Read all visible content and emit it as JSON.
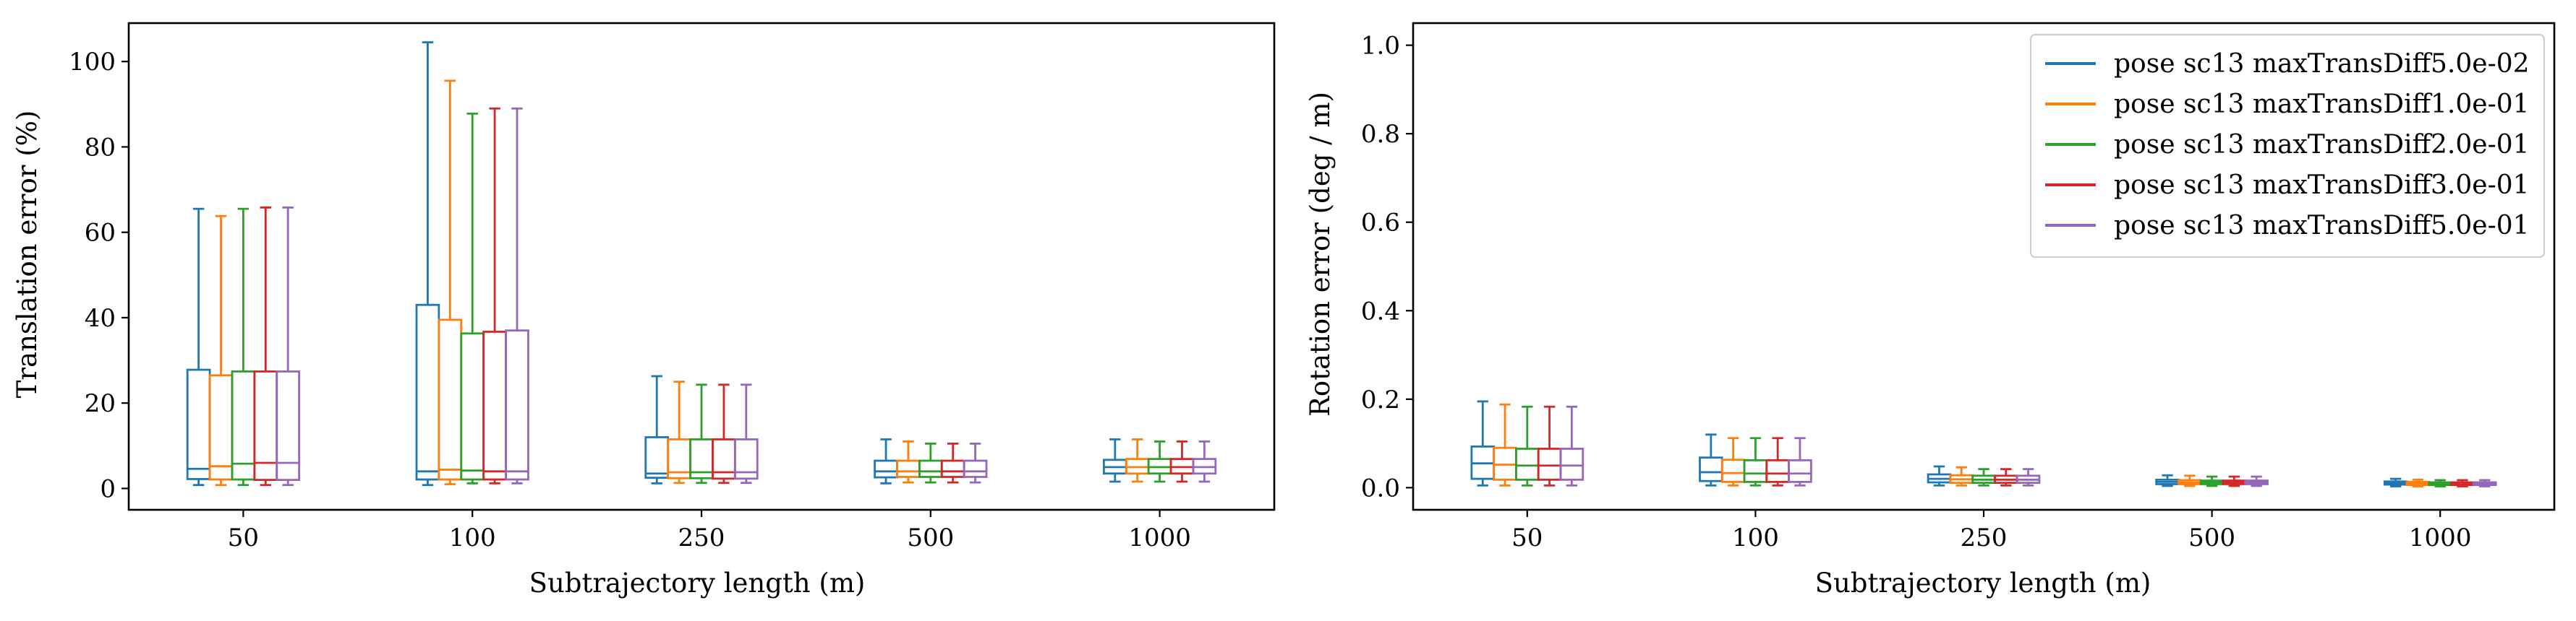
{
  "colors": [
    "#1f77b4",
    "#ff7f0e",
    "#2ca02c",
    "#d62728",
    "#9467bd"
  ],
  "chart_data": [
    {
      "type": "box",
      "xlabel": "Subtrajectory length (m)",
      "ylabel": "Translation error (%)",
      "ylim": [
        -5,
        109
      ],
      "yticks": [
        0,
        20,
        40,
        60,
        80,
        100
      ],
      "categories": [
        "50",
        "100",
        "250",
        "500",
        "1000"
      ],
      "legend": "none",
      "series": [
        {
          "boxes": [
            [
              0.8,
              2.2,
              4.6,
              27.8,
              65.5
            ],
            [
              0.8,
              2.1,
              4.0,
              43.0,
              104.5
            ],
            [
              1.2,
              2.5,
              3.5,
              12.0,
              26.3
            ],
            [
              1.2,
              2.6,
              4.0,
              6.5,
              11.5
            ],
            [
              1.6,
              3.5,
              5.0,
              6.7,
              11.5
            ]
          ]
        },
        {
          "boxes": [
            [
              0.8,
              2.1,
              5.2,
              26.5,
              63.8
            ],
            [
              1.0,
              2.1,
              4.4,
              39.5,
              95.5
            ],
            [
              1.3,
              2.4,
              3.8,
              11.5,
              25.0
            ],
            [
              1.4,
              2.7,
              4.0,
              6.5,
              11.0
            ],
            [
              1.6,
              3.5,
              5.0,
              6.9,
              11.5
            ]
          ]
        },
        {
          "boxes": [
            [
              0.8,
              2.1,
              5.8,
              27.4,
              65.5
            ],
            [
              1.2,
              2.1,
              4.2,
              36.3,
              87.8
            ],
            [
              1.3,
              2.4,
              3.8,
              11.5,
              24.3
            ],
            [
              1.4,
              2.7,
              4.0,
              6.5,
              10.5
            ],
            [
              1.6,
              3.5,
              5.0,
              6.9,
              11.0
            ]
          ]
        },
        {
          "boxes": [
            [
              0.8,
              2.0,
              6.0,
              27.4,
              65.8
            ],
            [
              1.2,
              2.1,
              4.0,
              36.7,
              89.0
            ],
            [
              1.3,
              2.3,
              3.8,
              11.5,
              24.3
            ],
            [
              1.4,
              2.7,
              4.0,
              6.5,
              10.5
            ],
            [
              1.6,
              3.5,
              5.0,
              6.9,
              11.0
            ]
          ]
        },
        {
          "boxes": [
            [
              0.8,
              2.0,
              6.0,
              27.4,
              65.8
            ],
            [
              1.2,
              2.1,
              4.0,
              37.0,
              89.0
            ],
            [
              1.3,
              2.3,
              3.8,
              11.5,
              24.3
            ],
            [
              1.4,
              2.7,
              4.0,
              6.5,
              10.5
            ],
            [
              1.6,
              3.5,
              5.0,
              6.9,
              11.0
            ]
          ]
        }
      ]
    },
    {
      "type": "box",
      "xlabel": "Subtrajectory length (m)",
      "ylabel": "Rotation error (deg / m)",
      "ylim": [
        -0.05,
        1.05
      ],
      "yticks": [
        0.0,
        0.2,
        0.4,
        0.6,
        0.8,
        1.0
      ],
      "ytick_labels": [
        "0.0",
        "0.2",
        "0.4",
        "0.6",
        "0.8",
        "1.0"
      ],
      "categories": [
        "50",
        "100",
        "250",
        "500",
        "1000"
      ],
      "legend": "top-right",
      "series": [
        {
          "name": "pose sc13 maxTransDiff5.0e-02",
          "boxes": [
            [
              0.005,
              0.02,
              0.055,
              0.093,
              0.195
            ],
            [
              0.005,
              0.015,
              0.035,
              0.068,
              0.12
            ],
            [
              0.005,
              0.012,
              0.02,
              0.03,
              0.048
            ],
            [
              0.004,
              0.008,
              0.013,
              0.018,
              0.028
            ],
            [
              0.003,
              0.007,
              0.01,
              0.014,
              0.02
            ]
          ]
        },
        {
          "name": "pose sc13 maxTransDiff1.0e-01",
          "boxes": [
            [
              0.005,
              0.018,
              0.052,
              0.09,
              0.188
            ],
            [
              0.005,
              0.013,
              0.033,
              0.063,
              0.112
            ],
            [
              0.005,
              0.011,
              0.019,
              0.028,
              0.046
            ],
            [
              0.004,
              0.008,
              0.012,
              0.017,
              0.027
            ],
            [
              0.003,
              0.006,
              0.009,
              0.013,
              0.018
            ]
          ]
        },
        {
          "name": "pose sc13 maxTransDiff2.0e-01",
          "boxes": [
            [
              0.005,
              0.018,
              0.05,
              0.088,
              0.183
            ],
            [
              0.005,
              0.013,
              0.032,
              0.062,
              0.112
            ],
            [
              0.005,
              0.011,
              0.018,
              0.027,
              0.042
            ],
            [
              0.004,
              0.008,
              0.012,
              0.016,
              0.025
            ],
            [
              0.003,
              0.006,
              0.009,
              0.012,
              0.017
            ]
          ]
        },
        {
          "name": "pose sc13 maxTransDiff3.0e-01",
          "boxes": [
            [
              0.005,
              0.018,
              0.05,
              0.088,
              0.183
            ],
            [
              0.005,
              0.013,
              0.032,
              0.062,
              0.112
            ],
            [
              0.005,
              0.011,
              0.018,
              0.027,
              0.042
            ],
            [
              0.004,
              0.008,
              0.012,
              0.016,
              0.025
            ],
            [
              0.003,
              0.006,
              0.009,
              0.012,
              0.017
            ]
          ]
        },
        {
          "name": "pose sc13 maxTransDiff5.0e-01",
          "boxes": [
            [
              0.005,
              0.018,
              0.05,
              0.088,
              0.183
            ],
            [
              0.005,
              0.013,
              0.032,
              0.062,
              0.112
            ],
            [
              0.005,
              0.011,
              0.018,
              0.027,
              0.042
            ],
            [
              0.004,
              0.008,
              0.012,
              0.016,
              0.025
            ],
            [
              0.003,
              0.006,
              0.009,
              0.012,
              0.017
            ]
          ]
        }
      ]
    }
  ]
}
